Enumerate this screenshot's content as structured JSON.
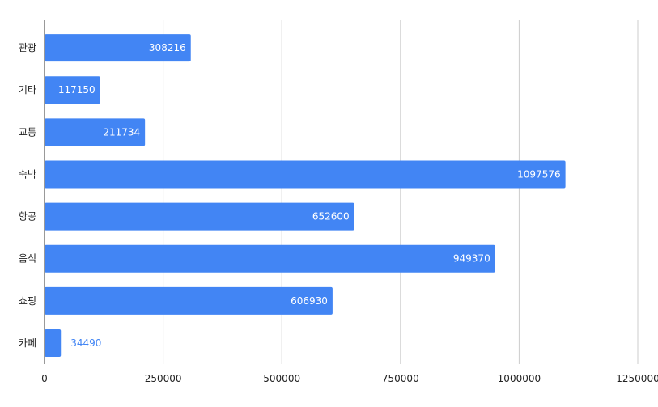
{
  "chart_data": {
    "type": "bar",
    "orientation": "horizontal",
    "categories": [
      "관광",
      "기타",
      "교통",
      "숙박",
      "항공",
      "음식",
      "쇼핑",
      "카페"
    ],
    "values": [
      308216,
      117150,
      211734,
      1097576,
      652600,
      949370,
      606930,
      34490
    ],
    "data_labels": [
      "308216",
      "117150",
      "211734",
      "1097576",
      "652600",
      "949370",
      "606930",
      "34490"
    ],
    "x_ticks": [
      "0",
      "250000",
      "500000",
      "750000",
      "1000000",
      "1250000"
    ],
    "xlim": [
      0,
      1250000
    ],
    "title": "",
    "xlabel": "",
    "ylabel": "",
    "grid": true,
    "legend": "none",
    "colors": {
      "bar": "#4285f4",
      "label_inside": "#ffffff",
      "label_outside": "#4285f4",
      "grid": "#cccccc",
      "axis": "#333333"
    }
  }
}
